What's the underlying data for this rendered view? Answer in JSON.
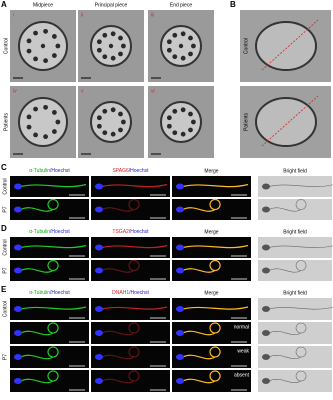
{
  "panel_a": {
    "label": "A",
    "columns": [
      "Midpiece",
      "Principal piece",
      "End piece"
    ],
    "rows": [
      "Control",
      "Patients"
    ],
    "numerals": [
      "i",
      "ii",
      "iii",
      "iv",
      "v",
      "vi"
    ]
  },
  "panel_b": {
    "label": "B",
    "rows": [
      "Control",
      "Patients"
    ]
  },
  "panel_c": {
    "label": "C",
    "stains": [
      {
        "stain": "α-Tubulin",
        "counter": "/Hoechst"
      },
      {
        "stain": "SPAG6",
        "counter": "/Hoechst"
      }
    ],
    "merge": "Merge",
    "bright": "Bright field",
    "rows": [
      "Control",
      "P7"
    ]
  },
  "panel_d": {
    "label": "D",
    "stains": [
      {
        "stain": "α-Tubulin",
        "counter": "/Hoechst"
      },
      {
        "stain": "TSGA2",
        "counter": "/Hoechst"
      }
    ],
    "merge": "Merge",
    "bright": "Bright field",
    "rows": [
      "Control",
      "P7"
    ]
  },
  "panel_e": {
    "label": "E",
    "stains": [
      {
        "stain": "α-Tubulin",
        "counter": "/Hoechst"
      },
      {
        "stain": "DNAH1",
        "counter": "/Hoechst"
      }
    ],
    "merge": "Merge",
    "bright": "Bright field",
    "rows": [
      "Control",
      "P7"
    ],
    "annotations": [
      "normal",
      "weak",
      "absent"
    ]
  }
}
